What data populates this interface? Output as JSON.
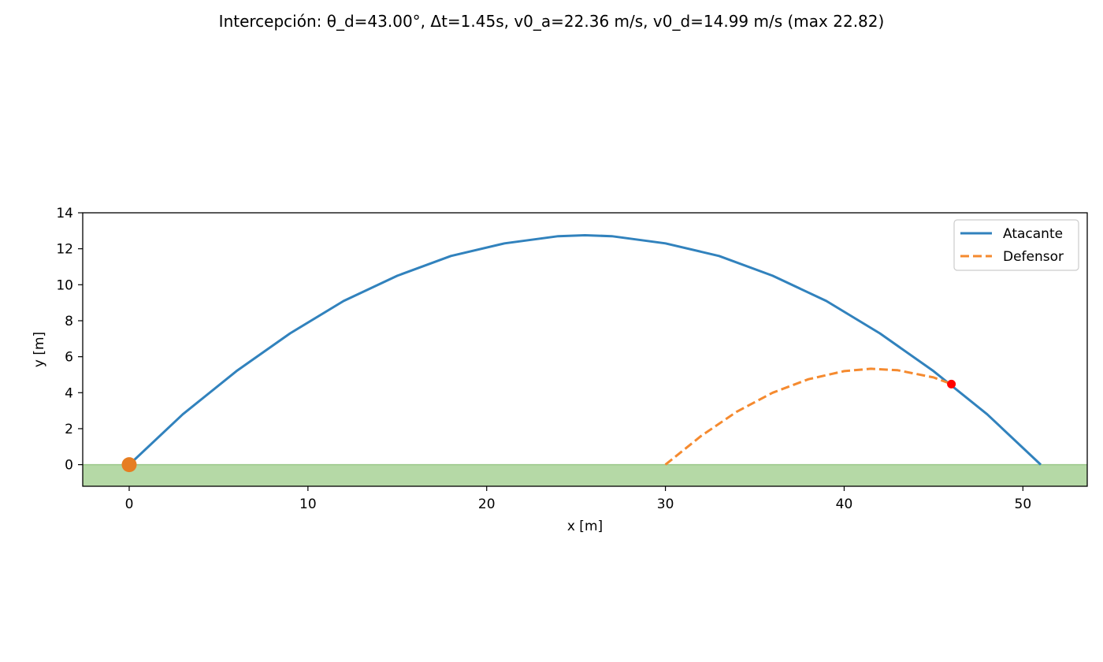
{
  "chart_data": {
    "type": "line",
    "title": "Intercepción: θ_d=43.00°, Δt=1.45s, v0_a=22.36 m/s, v0_d=14.99 m/s (max 22.82)",
    "xlabel": "x [m]",
    "ylabel": "y [m]",
    "xlim": [
      -2.6,
      53.6
    ],
    "ylim": [
      -1.2,
      14
    ],
    "xticks": [
      0,
      10,
      20,
      30,
      40,
      50
    ],
    "yticks": [
      0,
      2,
      4,
      6,
      8,
      10,
      12,
      14
    ],
    "grid": false,
    "legend_position": "top-right",
    "ground": {
      "y_top": 0,
      "color": "#b5d9a6",
      "edge_color": "#9bc88a"
    },
    "series": [
      {
        "name": "Atacante",
        "color": "#3182bd",
        "style": "solid",
        "x": [
          0,
          3,
          6,
          9,
          12,
          15,
          18,
          21,
          24,
          25.5,
          27,
          30,
          33,
          36,
          39,
          42,
          45,
          48,
          51
        ],
        "y": [
          0,
          2.8,
          5.2,
          7.3,
          9.1,
          10.5,
          11.6,
          12.3,
          12.7,
          12.75,
          12.7,
          12.3,
          11.6,
          10.5,
          9.1,
          7.3,
          5.2,
          2.8,
          0
        ]
      },
      {
        "name": "Defensor",
        "color": "#f58a2f",
        "style": "dashed",
        "x": [
          30,
          32,
          34,
          36,
          38,
          40,
          41.5,
          43,
          45,
          46
        ],
        "y": [
          0,
          1.6,
          2.95,
          4.0,
          4.75,
          5.2,
          5.33,
          5.25,
          4.85,
          4.48
        ]
      }
    ],
    "markers": [
      {
        "name": "launch-point",
        "x": 0,
        "y": 0,
        "color": "#e67e22",
        "size": "large"
      },
      {
        "name": "intercept-point",
        "x": 46.0,
        "y": 4.48,
        "color": "#ff0000",
        "size": "small"
      }
    ]
  }
}
